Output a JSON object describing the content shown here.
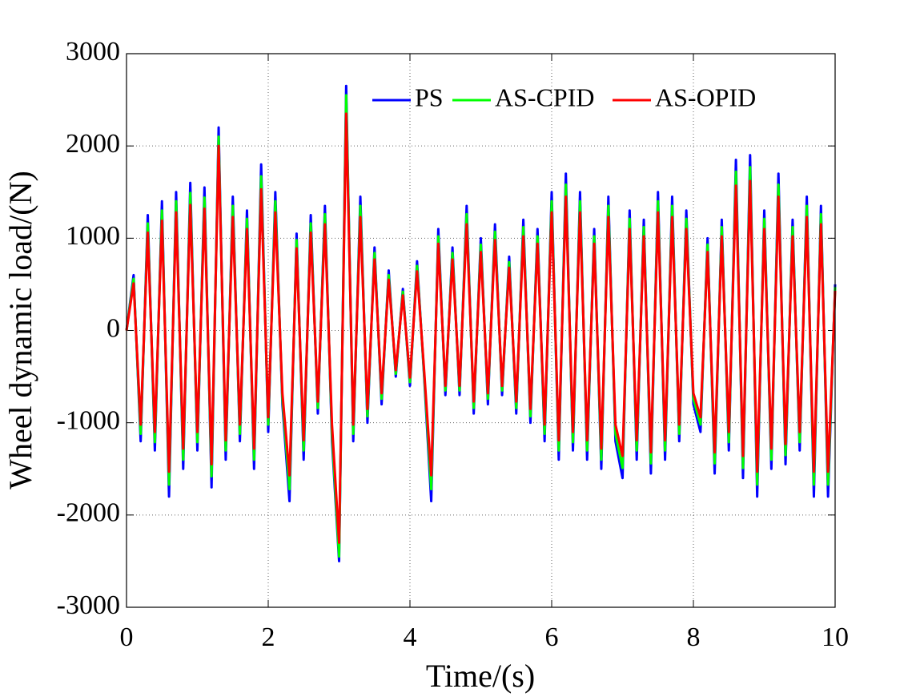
{
  "chart_data": {
    "type": "line",
    "xlabel": "Time/(s)",
    "ylabel": "Wheel dynamic load/(N)",
    "xlim": [
      0,
      10
    ],
    "ylim": [
      -3000,
      3000
    ],
    "xticks": [
      0,
      2,
      4,
      6,
      8,
      10
    ],
    "yticks": [
      -3000,
      -2000,
      -1000,
      0,
      1000,
      2000,
      3000
    ],
    "grid": true,
    "legend": "top",
    "x": [
      0,
      0.1,
      0.2,
      0.3,
      0.4,
      0.5,
      0.6,
      0.7,
      0.8,
      0.9,
      1,
      1.1,
      1.2,
      1.3,
      1.4,
      1.5,
      1.6,
      1.7,
      1.8,
      1.9,
      2,
      2.1,
      2.2,
      2.3,
      2.4,
      2.5,
      2.6,
      2.7,
      2.8,
      2.9,
      3,
      3.1,
      3.2,
      3.3,
      3.4,
      3.5,
      3.6,
      3.7,
      3.8,
      3.9,
      4,
      4.1,
      4.2,
      4.3,
      4.4,
      4.5,
      4.6,
      4.7,
      4.8,
      4.9,
      5,
      5.1,
      5.2,
      5.3,
      5.4,
      5.5,
      5.6,
      5.7,
      5.8,
      5.9,
      6,
      6.1,
      6.2,
      6.3,
      6.4,
      6.5,
      6.6,
      6.7,
      6.8,
      6.9,
      7,
      7.1,
      7.2,
      7.3,
      7.4,
      7.5,
      7.6,
      7.7,
      7.8,
      7.9,
      8,
      8.1,
      8.2,
      8.3,
      8.4,
      8.5,
      8.6,
      8.7,
      8.8,
      8.9,
      9,
      9.1,
      9.2,
      9.3,
      9.4,
      9.5,
      9.6,
      9.7,
      9.8,
      9.9,
      10
    ],
    "series": [
      {
        "name": "PS",
        "color": "#0000ff",
        "values": [
          0,
          600,
          -1200,
          1250,
          -1300,
          1400,
          -1800,
          1500,
          -1500,
          1600,
          -1300,
          1550,
          -1700,
          2200,
          -1400,
          1450,
          -1200,
          1300,
          -1500,
          1800,
          -1100,
          1500,
          -800,
          -1850,
          1050,
          -1400,
          1250,
          -900,
          1350,
          -1200,
          -2500,
          2650,
          -1200,
          1450,
          -1000,
          900,
          -800,
          650,
          -500,
          450,
          -600,
          750,
          -500,
          -1850,
          1100,
          -700,
          900,
          -700,
          1350,
          -900,
          1000,
          -800,
          1150,
          -700,
          800,
          -900,
          1200,
          -1000,
          1100,
          -1200,
          1500,
          -1400,
          1700,
          -1300,
          1500,
          -1400,
          1100,
          -1500,
          1450,
          -1200,
          -1600,
          1300,
          -1400,
          1200,
          -1550,
          1500,
          -1400,
          1450,
          -1200,
          1300,
          -800,
          -1100,
          1000,
          -1550,
          1200,
          -1300,
          1850,
          -1600,
          1900,
          -1800,
          1300,
          -1500,
          1700,
          -1450,
          1200,
          -1300,
          1450,
          -1800,
          1350,
          -1800,
          500
        ]
      },
      {
        "name": "AS-CPID",
        "color": "#00ff00",
        "values": [
          0,
          560,
          -1120,
          1160,
          -1210,
          1300,
          -1670,
          1400,
          -1400,
          1490,
          -1210,
          1440,
          -1580,
          2100,
          -1300,
          1350,
          -1120,
          1210,
          -1400,
          1670,
          -1020,
          1400,
          -740,
          -1720,
          980,
          -1300,
          1160,
          -840,
          1260,
          -1120,
          -2450,
          2550,
          -1120,
          1350,
          -930,
          840,
          -740,
          600,
          -470,
          420,
          -560,
          700,
          -470,
          -1720,
          1020,
          -650,
          840,
          -650,
          1260,
          -840,
          930,
          -740,
          1070,
          -650,
          740,
          -840,
          1120,
          -930,
          1020,
          -1120,
          1400,
          -1300,
          1580,
          -1210,
          1400,
          -1300,
          1020,
          -1400,
          1350,
          -1120,
          -1490,
          1210,
          -1300,
          1120,
          -1440,
          1400,
          -1300,
          1350,
          -1120,
          1210,
          -740,
          -1020,
          930,
          -1440,
          1120,
          -1210,
          1720,
          -1490,
          1770,
          -1670,
          1210,
          -1400,
          1580,
          -1350,
          1120,
          -1210,
          1350,
          -1670,
          1260,
          -1670,
          470
        ]
      },
      {
        "name": "AS-OPID",
        "color": "#ff0000",
        "values": [
          0,
          510,
          -1020,
          1060,
          -1100,
          1190,
          -1530,
          1280,
          -1280,
          1360,
          -1100,
          1320,
          -1450,
          2000,
          -1190,
          1230,
          -1020,
          1100,
          -1280,
          1530,
          -940,
          1280,
          -680,
          -1570,
          890,
          -1190,
          1060,
          -770,
          1150,
          -1020,
          -2300,
          2350,
          -1020,
          1230,
          -850,
          770,
          -680,
          550,
          -430,
          380,
          -510,
          640,
          -430,
          -1570,
          940,
          -600,
          770,
          -600,
          1150,
          -770,
          850,
          -680,
          980,
          -600,
          680,
          -770,
          1020,
          -850,
          940,
          -1020,
          1280,
          -1190,
          1450,
          -1100,
          1280,
          -1190,
          940,
          -1280,
          1230,
          -1020,
          -1360,
          1100,
          -1190,
          1020,
          -1320,
          1280,
          -1190,
          1230,
          -1020,
          1100,
          -680,
          -940,
          850,
          -1320,
          1020,
          -1100,
          1570,
          -1360,
          1620,
          -1530,
          1100,
          -1280,
          1450,
          -1230,
          1020,
          -1100,
          1230,
          -1530,
          1150,
          -1530,
          430
        ]
      }
    ]
  }
}
